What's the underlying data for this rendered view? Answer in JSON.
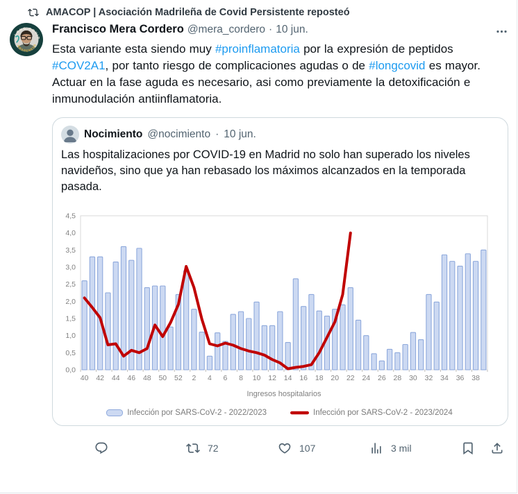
{
  "repost": {
    "label": "AMACOP | Asociación Madrileña de Covid Persistente reposteó"
  },
  "author": {
    "name": "Francisco Mera Cordero",
    "handle": "@mera_cordero",
    "separator": "·",
    "date": "10 jun."
  },
  "tweet": {
    "segments": [
      {
        "text": "Esta variante esta siendo muy "
      },
      {
        "text": "#proinflamatoria",
        "link": true
      },
      {
        "text": " por la expresión de peptidos "
      },
      {
        "text": "#COV2A1",
        "link": true
      },
      {
        "text": ", por tanto riesgo de complicaciones agudas  o de "
      },
      {
        "text": "#longcovid",
        "link": true
      },
      {
        "text": " es mayor. Actuar en la fase aguda es necesario, asi como previamente la detoxificación e inmunodulación antiinflamatoria."
      }
    ]
  },
  "quote": {
    "name": "Nocimiento",
    "handle": "@nocimiento",
    "separator": "·",
    "date": "10 jun.",
    "text": "Las hospitalizaciones por COVID-19 en Madrid no solo han superado los niveles navideños, sino que ya han rebasado los máximos alcanzados en la temporada pasada."
  },
  "chart_data": {
    "type": "bar",
    "title": "",
    "xlabel": "Ingresos hospitalarios",
    "ylabel": "",
    "ylim": [
      0,
      4.5
    ],
    "y_step": 0.5,
    "grid": false,
    "legend_position": "bottom",
    "y_tick_labels": [
      "0,0",
      "0,5",
      "1,0",
      "1,5",
      "2,0",
      "2,5",
      "3,0",
      "3,5",
      "4,0",
      "4,5"
    ],
    "categories": [
      "40",
      "41",
      "42",
      "43",
      "44",
      "45",
      "46",
      "47",
      "48",
      "49",
      "50",
      "51",
      "52",
      "1",
      "2",
      "3",
      "4",
      "5",
      "6",
      "7",
      "8",
      "9",
      "10",
      "11",
      "12",
      "13",
      "14",
      "15",
      "16",
      "17",
      "18",
      "19",
      "20",
      "21",
      "22",
      "23",
      "24",
      "25",
      "26",
      "27",
      "28",
      "29",
      "30",
      "31",
      "32",
      "33",
      "34",
      "35",
      "36",
      "37",
      "38",
      "39"
    ],
    "x_tick_labels": [
      "40",
      "42",
      "44",
      "46",
      "48",
      "50",
      "52",
      "2",
      "4",
      "6",
      "8",
      "10",
      "12",
      "14",
      "16",
      "18",
      "20",
      "22",
      "24",
      "26",
      "28",
      "30",
      "32",
      "34",
      "36",
      "38"
    ],
    "series": [
      {
        "name": "Infección por SARS-CoV-2 - 2022/2023",
        "type": "bar",
        "color_fill": "#ccd9f2",
        "color_stroke": "#8ea9dc",
        "values": [
          2.6,
          3.3,
          3.3,
          2.25,
          3.15,
          3.6,
          3.2,
          3.55,
          2.4,
          2.45,
          2.45,
          1.25,
          2.2,
          2.9,
          1.77,
          1.1,
          0.4,
          1.08,
          0.83,
          1.62,
          1.7,
          1.5,
          1.98,
          1.29,
          1.29,
          1.7,
          0.8,
          2.66,
          1.85,
          2.2,
          1.72,
          1.57,
          1.77,
          1.9,
          2.4,
          1.45,
          1.0,
          0.47,
          0.26,
          0.6,
          0.5,
          0.74,
          1.09,
          0.88,
          2.2,
          1.98,
          3.36,
          3.17,
          3.03,
          3.39,
          3.17,
          3.5
        ]
      },
      {
        "name": "Infección por SARS-CoV-2 - 2023/2024",
        "type": "line",
        "color": "#c00000",
        "values": [
          2.1,
          1.82,
          1.52,
          0.73,
          0.76,
          0.4,
          0.57,
          0.5,
          0.62,
          1.31,
          0.97,
          1.38,
          1.91,
          3.02,
          2.4,
          1.48,
          0.76,
          0.7,
          0.78,
          0.72,
          0.62,
          0.55,
          0.5,
          0.43,
          0.3,
          0.2,
          0.03,
          0.07,
          0.1,
          0.15,
          0.5,
          0.95,
          1.4,
          2.2,
          4.0
        ]
      }
    ]
  },
  "actions": {
    "reply_count": "",
    "retweet_count": "72",
    "like_count": "107",
    "views_count": "3 mil"
  },
  "colors": {
    "accent": "#1d9bf0",
    "text": "#0f1419",
    "secondary": "#536471",
    "bar_fill": "#ccd9f2",
    "bar_stroke": "#8ea9dc",
    "line": "#c00000",
    "card_border": "#cfd9de"
  }
}
